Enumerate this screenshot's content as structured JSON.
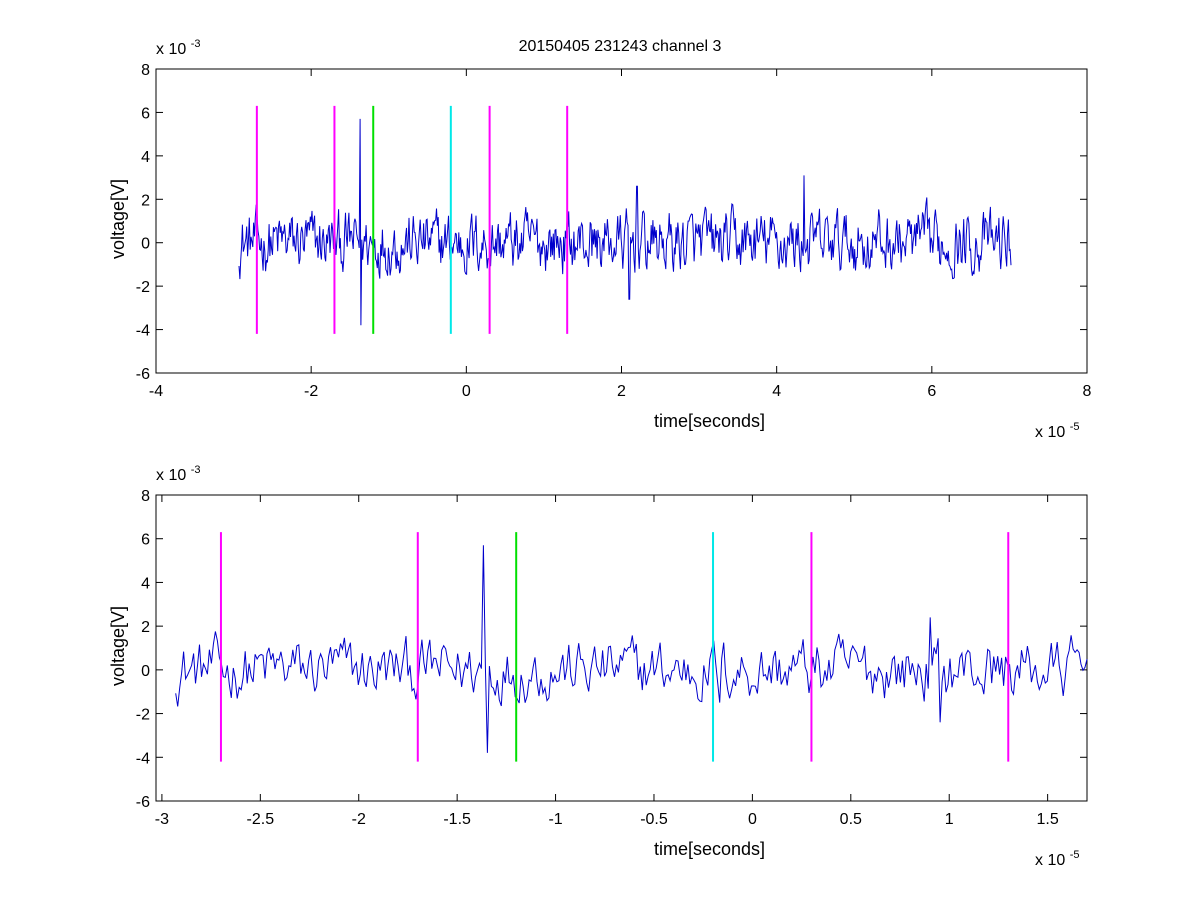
{
  "figure": {
    "title": "20150405 231243 channel 3"
  },
  "colors": {
    "signal": "#0000cc",
    "magenta": "#ff00ff",
    "green": "#00e000",
    "cyan": "#00e8e8",
    "axes": "#000000"
  },
  "chart_data": [
    {
      "type": "line",
      "title": "20150405 231243 channel 3",
      "xlabel": "time[seconds]",
      "ylabel": "voltage[V]",
      "x_exponent_label": "x 10",
      "x_exponent": "-5",
      "y_exponent_label": "x 10",
      "y_exponent": "-3",
      "xlim": [
        -4e-05,
        8e-05
      ],
      "ylim": [
        -0.006,
        0.008
      ],
      "x_ticks": [
        -4e-05,
        -2e-05,
        0,
        2e-05,
        4e-05,
        6e-05,
        8e-05
      ],
      "x_tick_labels": [
        "-4",
        "-2",
        "0",
        "2",
        "4",
        "6",
        "8"
      ],
      "y_ticks": [
        -0.006,
        -0.004,
        -0.002,
        0,
        0.002,
        0.004,
        0.006,
        0.008
      ],
      "y_tick_labels": [
        "-6",
        "-4",
        "-2",
        "0",
        "2",
        "4",
        "6",
        "8"
      ],
      "grid": false,
      "series": [
        {
          "color": "#0000cc",
          "x_start": -2.93e-05,
          "x_end": 7.02e-05,
          "sample_count": 900,
          "noise_amplitude": 0.0008,
          "spikes": [
            {
              "x": -1.37e-05,
              "y": 0.0057
            },
            {
              "x": -1.36e-05,
              "y": -0.0038
            },
            {
              "x": 2.2e-05,
              "y": 0.0026
            },
            {
              "x": 2.1e-05,
              "y": -0.0026
            },
            {
              "x": 4.35e-05,
              "y": 0.0031
            }
          ]
        }
      ],
      "markers": [
        {
          "x": -2.7e-05,
          "color": "#ff00ff",
          "y0": -0.0042,
          "y1": 0.0063
        },
        {
          "x": -1.7e-05,
          "color": "#ff00ff",
          "y0": -0.0042,
          "y1": 0.0063
        },
        {
          "x": -1.2e-05,
          "color": "#00e000",
          "y0": -0.0042,
          "y1": 0.0063
        },
        {
          "x": -2e-06,
          "color": "#00e8e8",
          "y0": -0.0042,
          "y1": 0.0063
        },
        {
          "x": 3e-06,
          "color": "#ff00ff",
          "y0": -0.0042,
          "y1": 0.0063
        },
        {
          "x": 1.3e-05,
          "color": "#ff00ff",
          "y0": -0.0042,
          "y1": 0.0063
        }
      ]
    },
    {
      "type": "line",
      "title": "",
      "xlabel": "time[seconds]",
      "ylabel": "voltage[V]",
      "x_exponent_label": "x 10",
      "x_exponent": "-5",
      "y_exponent_label": "x 10",
      "y_exponent": "-3",
      "xlim": [
        -3.03e-05,
        1.7e-05
      ],
      "ylim": [
        -0.006,
        0.008
      ],
      "x_ticks": [
        -3e-05,
        -2.5e-05,
        -2e-05,
        -1.5e-05,
        -1e-05,
        -5e-06,
        0,
        5e-06,
        1e-05,
        1.5e-05
      ],
      "x_tick_labels": [
        "-3",
        "-2.5",
        "-2",
        "-1.5",
        "-1",
        "-0.5",
        "0",
        "0.5",
        "1",
        "1.5"
      ],
      "y_ticks": [
        -0.006,
        -0.004,
        -0.002,
        0,
        0.002,
        0.004,
        0.006,
        0.008
      ],
      "y_tick_labels": [
        "-6",
        "-4",
        "-2",
        "0",
        "2",
        "4",
        "6",
        "8"
      ],
      "grid": false,
      "series": [
        {
          "color": "#0000cc",
          "x_start": -2.93e-05,
          "x_end": 1.7e-05,
          "sample_count": 460,
          "noise_amplitude": 0.0008,
          "spikes": [
            {
              "x": -1.37e-05,
              "y": 0.0057
            },
            {
              "x": -1.35e-05,
              "y": -0.0038
            },
            {
              "x": -1.7e-06,
              "y": -0.0015
            },
            {
              "x": 9e-06,
              "y": 0.0024
            },
            {
              "x": 9.5e-06,
              "y": -0.0024
            }
          ]
        }
      ],
      "markers": [
        {
          "x": -2.7e-05,
          "color": "#ff00ff",
          "y0": -0.0042,
          "y1": 0.0063
        },
        {
          "x": -1.7e-05,
          "color": "#ff00ff",
          "y0": -0.0042,
          "y1": 0.0063
        },
        {
          "x": -1.2e-05,
          "color": "#00e000",
          "y0": -0.0042,
          "y1": 0.0063
        },
        {
          "x": -2e-06,
          "color": "#00e8e8",
          "y0": -0.0042,
          "y1": 0.0063
        },
        {
          "x": 3e-06,
          "color": "#ff00ff",
          "y0": -0.0042,
          "y1": 0.0063
        },
        {
          "x": 1.3e-05,
          "color": "#ff00ff",
          "y0": -0.0042,
          "y1": 0.0063
        }
      ]
    }
  ]
}
